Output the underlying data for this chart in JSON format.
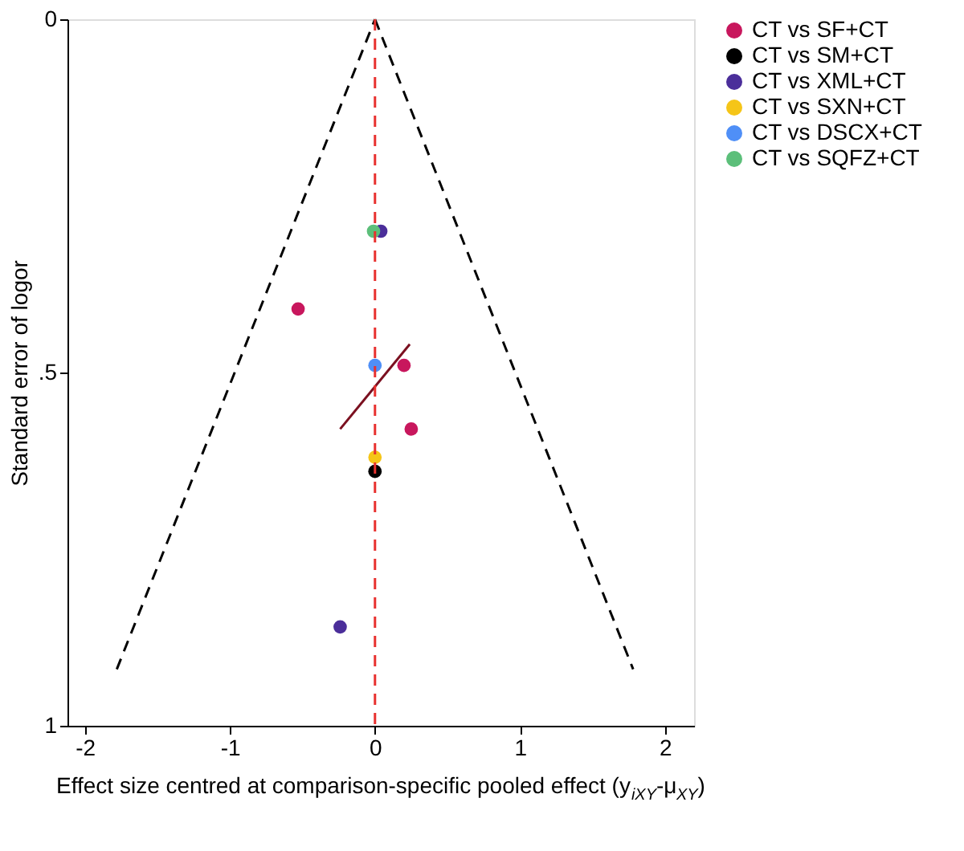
{
  "chart_data": {
    "type": "scatter",
    "xlabel": "Effect size centred at comparison-specific pooled effect (y$_{iXY}$-μ$_{XY}$)",
    "ylabel": "Standard error of logor",
    "xlim": [
      -2.12,
      2.2
    ],
    "xticks": [
      -2,
      -1,
      0,
      1,
      2
    ],
    "ylim": [
      1,
      0
    ],
    "yticks": [
      0,
      {
        "value": 0.5,
        "label": ".5"
      },
      1
    ],
    "grid": false,
    "legend": "right",
    "marker": "circle",
    "ref_lines": [
      {
        "axis": "x",
        "value": 0,
        "color": "#e8312f",
        "line_style": "dashed"
      }
    ],
    "series": [
      {
        "type": "line",
        "color": "#000000",
        "line_style": "dashed",
        "marker": "none",
        "x": [
          -1.78,
          0
        ],
        "values": [
          0.92,
          0
        ]
      },
      {
        "type": "line",
        "color": "#000000",
        "line_style": "dashed",
        "marker": "none",
        "x": [
          0,
          1.78
        ],
        "values": [
          0,
          0.92
        ]
      },
      {
        "name": "CT vs SF+CT",
        "color": "#c8175d",
        "x": [
          -0.53,
          0.2,
          0.25
        ],
        "values": [
          0.41,
          0.49,
          0.58
        ]
      },
      {
        "name": "CT vs SM+CT",
        "color": "#000000",
        "x": [
          0
        ],
        "values": [
          0.64
        ]
      },
      {
        "name": "CT vs XML+CT",
        "color": "#4b2e9a",
        "x": [
          0.04,
          -0.24
        ],
        "values": [
          0.3,
          0.86
        ]
      },
      {
        "name": "CT vs SXN+CT",
        "color": "#f5c518",
        "x": [
          0
        ],
        "values": [
          0.62
        ]
      },
      {
        "name": "CT vs DSCX+CT",
        "color": "#4f8ff7",
        "x": [
          0
        ],
        "values": [
          0.49
        ]
      },
      {
        "name": "CT vs SQFZ+CT",
        "color": "#5cbf7a",
        "x": [
          -0.01
        ],
        "values": [
          0.3
        ]
      },
      {
        "type": "line",
        "color": "#7b1020",
        "line_style": "solid",
        "marker": "none",
        "x": [
          -0.24,
          0.24
        ],
        "values": [
          0.58,
          0.46
        ]
      }
    ]
  }
}
